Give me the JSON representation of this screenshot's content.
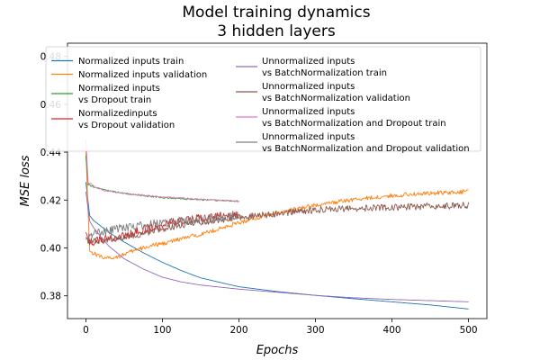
{
  "chart_data": {
    "type": "line",
    "title": "Model training dynamics",
    "subtitle": "3 hidden layers",
    "xlabel": "Epochs",
    "ylabel": "MSE loss",
    "xlim": [
      -24,
      524
    ],
    "ylim": [
      0.3705,
      0.4855
    ],
    "x_ticks": [
      0,
      100,
      200,
      300,
      400,
      500
    ],
    "y_ticks": [
      0.38,
      0.4,
      0.42,
      0.44,
      0.46,
      0.48
    ],
    "x_tick_labels": [
      "0",
      "100",
      "200",
      "300",
      "400",
      "500"
    ],
    "y_tick_labels": [
      "0.38",
      "0.40",
      "0.42",
      "0.44",
      "0.46",
      "0.48"
    ],
    "grid": false,
    "legend_position": "top",
    "series": [
      {
        "name": "Normalized inputs train",
        "color": "#1f77b4",
        "x": [
          0,
          5,
          10,
          20,
          30,
          50,
          75,
          100,
          125,
          150,
          200,
          250,
          300,
          350,
          400,
          450,
          500
        ],
        "y": [
          0.4275,
          0.4135,
          0.4115,
          0.409,
          0.4065,
          0.4025,
          0.398,
          0.394,
          0.3905,
          0.3875,
          0.3838,
          0.3818,
          0.3802,
          0.3788,
          0.3775,
          0.3762,
          0.3745
        ],
        "noise": 0
      },
      {
        "name": "Normalized inputs validation",
        "color": "#ff7f0e",
        "x": [
          0,
          5,
          15,
          30,
          45,
          60,
          80,
          100,
          125,
          150,
          175,
          200,
          225,
          250,
          275,
          300,
          325,
          350,
          375,
          400,
          425,
          450,
          475,
          500
        ],
        "y": [
          0.4405,
          0.3985,
          0.397,
          0.3955,
          0.3968,
          0.3985,
          0.4005,
          0.4018,
          0.4038,
          0.4058,
          0.408,
          0.4105,
          0.4128,
          0.4148,
          0.4162,
          0.4178,
          0.419,
          0.4202,
          0.421,
          0.4218,
          0.4225,
          0.4228,
          0.4232,
          0.4235
        ],
        "noise": 0.0009
      },
      {
        "name": "Normalized inputs\nvs Dropout train",
        "color": "#2ca02c",
        "x": [
          0,
          3,
          10,
          25,
          50,
          75,
          100,
          125,
          150,
          175,
          200
        ],
        "y": [
          0.4385,
          0.4265,
          0.4255,
          0.4242,
          0.4228,
          0.4218,
          0.421,
          0.4205,
          0.4202,
          0.4198,
          0.4195
        ],
        "noise": 0.0003
      },
      {
        "name": "Normalizedinputs\nvs Dropout validation",
        "color": "#d62728",
        "x": [
          0,
          5,
          25,
          50,
          75,
          100,
          125,
          150,
          175,
          200
        ],
        "y": [
          0.4065,
          0.4025,
          0.4035,
          0.405,
          0.4075,
          0.4098,
          0.4112,
          0.4125,
          0.4132,
          0.4138
        ],
        "noise": 0.0018
      },
      {
        "name": "Unnormalized inputs\nvs BatchNormalization train",
        "color": "#9467bd",
        "x": [
          0,
          5,
          10,
          20,
          30,
          50,
          75,
          100,
          125,
          150,
          200,
          250,
          300,
          350,
          400,
          450,
          500
        ],
        "y": [
          0.4235,
          0.4112,
          0.4085,
          0.4045,
          0.4008,
          0.3955,
          0.3912,
          0.3878,
          0.3858,
          0.3845,
          0.3828,
          0.3815,
          0.3802,
          0.3792,
          0.3785,
          0.378,
          0.3775
        ],
        "noise": 0
      },
      {
        "name": "Unnormalized inputs\nvs BatchNormalization validation",
        "color": "#8c564b",
        "x": [
          0,
          5,
          25,
          50,
          75,
          100,
          125,
          150,
          175,
          200,
          225,
          250,
          275,
          300,
          325,
          350,
          375,
          400,
          425,
          450,
          475,
          500
        ],
        "y": [
          0.4045,
          0.4025,
          0.4035,
          0.4045,
          0.4062,
          0.408,
          0.4095,
          0.4108,
          0.4118,
          0.4128,
          0.4135,
          0.4142,
          0.4152,
          0.4158,
          0.4162,
          0.4165,
          0.4168,
          0.417,
          0.4172,
          0.4174,
          0.4176,
          0.4178
        ],
        "noise": 0.0014
      },
      {
        "name": "Unnormalized inputs\nvs BatchNormalization and Dropout train",
        "color": "#e377c2",
        "x": [
          0,
          3,
          10,
          25,
          50,
          75,
          100,
          125,
          150,
          175,
          200
        ],
        "y": [
          0.4455,
          0.4275,
          0.4258,
          0.4238,
          0.4228,
          0.422,
          0.4213,
          0.4208,
          0.4203,
          0.4199,
          0.4195
        ],
        "noise": 0.0003
      },
      {
        "name": "Unnormalized inputs\nvs BatchNormalization and Dropout validation",
        "color": "#7f7f7f",
        "x": [
          0,
          5,
          25,
          50,
          75,
          100,
          125,
          150,
          175,
          200
        ],
        "y": [
          0.4035,
          0.4055,
          0.4072,
          0.4085,
          0.4095,
          0.4105,
          0.4112,
          0.412,
          0.4128,
          0.4135
        ],
        "noise": 0.0018
      }
    ]
  }
}
